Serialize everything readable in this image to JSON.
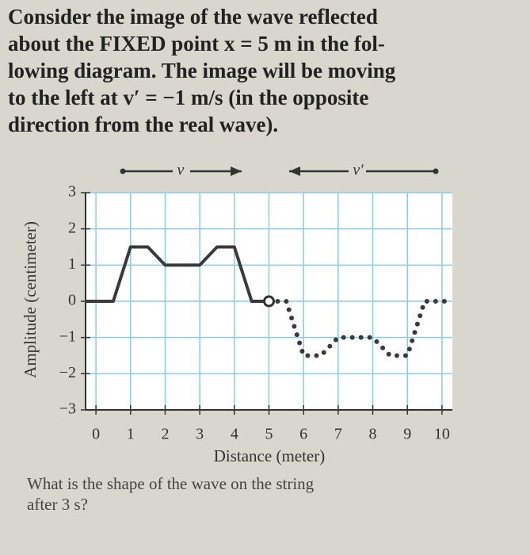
{
  "text": {
    "intro": [
      "Consider the image of the wave reflected",
      "about the FIXED point x = 5 m in the fol-",
      "lowing diagram. The image will be moving",
      "to the left at v′ = −1 m/s (in the opposite",
      "direction from the real wave)."
    ],
    "question": [
      "What is the shape of the wave on the string",
      "after 3 s?"
    ]
  },
  "chart_data": {
    "type": "line",
    "x_label": "Distance (meter)",
    "y_label": "Amplitude (centimeter)",
    "xlim": [
      -0.3,
      10.3
    ],
    "ylim": [
      -3,
      3
    ],
    "xticks": [
      0,
      1,
      2,
      3,
      4,
      5,
      6,
      7,
      8,
      9,
      10
    ],
    "yticks": [
      {
        "value": -3,
        "label": "−3"
      },
      {
        "value": -2,
        "label": "−2"
      },
      {
        "value": -1,
        "label": "−1"
      },
      0,
      1,
      2,
      3
    ],
    "grid": true,
    "grid_color": "#8ccbea",
    "series": [
      {
        "x": [
          -0.3,
          0.5,
          1,
          1.5,
          2,
          3,
          3.5,
          4,
          4.5,
          5
        ],
        "values": [
          0,
          0,
          1.5,
          1.5,
          1,
          1,
          1.5,
          1.5,
          0,
          0
        ],
        "color": "#3a3a3a",
        "style": "solid"
      },
      {
        "x": [
          5,
          5.5,
          6,
          6.5,
          7,
          8,
          8.5,
          9,
          9.5,
          10.3
        ],
        "values": [
          0,
          0,
          -1.5,
          -1.5,
          -1,
          -1,
          -1.5,
          -1.5,
          0,
          0
        ],
        "color": "#3a3a3a",
        "style": "dotted"
      }
    ],
    "annotations": [
      {
        "text": "v",
        "direction": "right"
      },
      {
        "text": "v′",
        "direction": "left"
      }
    ]
  }
}
